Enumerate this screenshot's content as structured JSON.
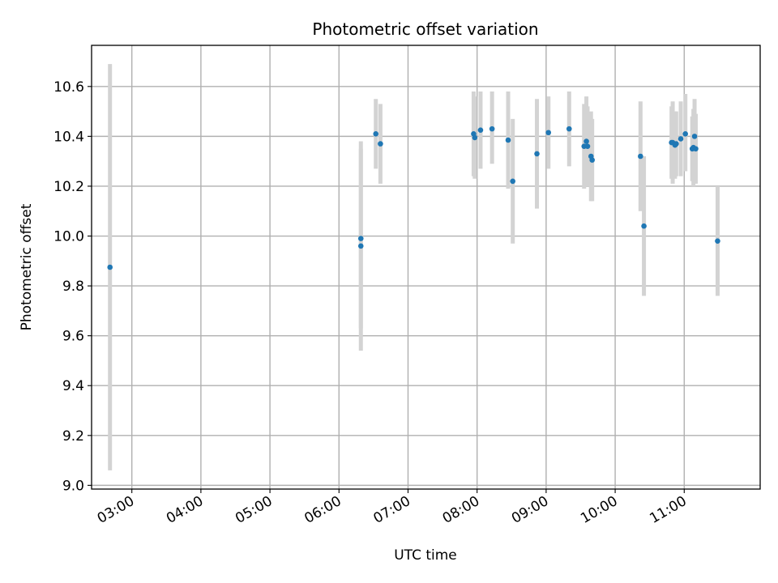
{
  "chart_data": {
    "type": "scatter",
    "title": "Photometric offset variation",
    "xlabel": "UTC time",
    "ylabel": "Photometric offset",
    "xlim": [
      "02:25",
      "12:06"
    ],
    "ylim": [
      8.985,
      10.765
    ],
    "grid": true,
    "x_ticks": [
      "03:00",
      "04:00",
      "05:00",
      "06:00",
      "07:00",
      "08:00",
      "09:00",
      "10:00",
      "11:00"
    ],
    "y_ticks": [
      "9.0",
      "9.2",
      "9.4",
      "9.6",
      "9.8",
      "10.0",
      "10.2",
      "10.4",
      "10.6"
    ],
    "colors": {
      "point": "#1f77b4",
      "errorbar": "#d3d3d3",
      "grid": "#b0b0b0"
    },
    "series": [
      {
        "points": [
          {
            "x": "02:41",
            "y": 9.875,
            "ylo": 9.06,
            "yhi": 10.69
          },
          {
            "x": "06:19",
            "y": 9.96,
            "ylo": 9.54,
            "yhi": 10.38
          },
          {
            "x": "06:19",
            "y": 9.99,
            "ylo": 9.63,
            "yhi": 10.35
          },
          {
            "x": "06:32",
            "y": 10.41,
            "ylo": 10.27,
            "yhi": 10.55
          },
          {
            "x": "06:36",
            "y": 10.37,
            "ylo": 10.21,
            "yhi": 10.53
          },
          {
            "x": "07:57",
            "y": 10.41,
            "ylo": 10.24,
            "yhi": 10.58
          },
          {
            "x": "07:58",
            "y": 10.395,
            "ylo": 10.23,
            "yhi": 10.56
          },
          {
            "x": "08:03",
            "y": 10.425,
            "ylo": 10.27,
            "yhi": 10.58
          },
          {
            "x": "08:13",
            "y": 10.43,
            "ylo": 10.29,
            "yhi": 10.58
          },
          {
            "x": "08:27",
            "y": 10.385,
            "ylo": 10.19,
            "yhi": 10.58
          },
          {
            "x": "08:31",
            "y": 10.22,
            "ylo": 9.97,
            "yhi": 10.47
          },
          {
            "x": "08:52",
            "y": 10.33,
            "ylo": 10.11,
            "yhi": 10.55
          },
          {
            "x": "09:02",
            "y": 10.415,
            "ylo": 10.27,
            "yhi": 10.56
          },
          {
            "x": "09:20",
            "y": 10.43,
            "ylo": 10.28,
            "yhi": 10.58
          },
          {
            "x": "09:33",
            "y": 10.36,
            "ylo": 10.19,
            "yhi": 10.53
          },
          {
            "x": "09:35",
            "y": 10.38,
            "ylo": 10.2,
            "yhi": 10.56
          },
          {
            "x": "09:36",
            "y": 10.36,
            "ylo": 10.2,
            "yhi": 10.52
          },
          {
            "x": "09:39",
            "y": 10.32,
            "ylo": 10.14,
            "yhi": 10.5
          },
          {
            "x": "09:40",
            "y": 10.305,
            "ylo": 10.14,
            "yhi": 10.47
          },
          {
            "x": "10:22",
            "y": 10.32,
            "ylo": 10.1,
            "yhi": 10.54
          },
          {
            "x": "10:25",
            "y": 10.04,
            "ylo": 9.76,
            "yhi": 10.32
          },
          {
            "x": "10:49",
            "y": 10.375,
            "ylo": 10.23,
            "yhi": 10.52
          },
          {
            "x": "10:50",
            "y": 10.375,
            "ylo": 10.21,
            "yhi": 10.54
          },
          {
            "x": "10:52",
            "y": 10.365,
            "ylo": 10.23,
            "yhi": 10.5
          },
          {
            "x": "10:53",
            "y": 10.37,
            "ylo": 10.24,
            "yhi": 10.5
          },
          {
            "x": "10:57",
            "y": 10.39,
            "ylo": 10.24,
            "yhi": 10.54
          },
          {
            "x": "11:01",
            "y": 10.41,
            "ylo": 10.26,
            "yhi": 10.57
          },
          {
            "x": "11:07",
            "y": 10.35,
            "ylo": 10.22,
            "yhi": 10.48
          },
          {
            "x": "11:08",
            "y": 10.355,
            "ylo": 10.2,
            "yhi": 10.51
          },
          {
            "x": "11:09",
            "y": 10.4,
            "ylo": 10.25,
            "yhi": 10.55
          },
          {
            "x": "11:10",
            "y": 10.35,
            "ylo": 10.21,
            "yhi": 10.49
          },
          {
            "x": "11:29",
            "y": 9.98,
            "ylo": 9.76,
            "yhi": 10.2
          }
        ]
      }
    ]
  }
}
